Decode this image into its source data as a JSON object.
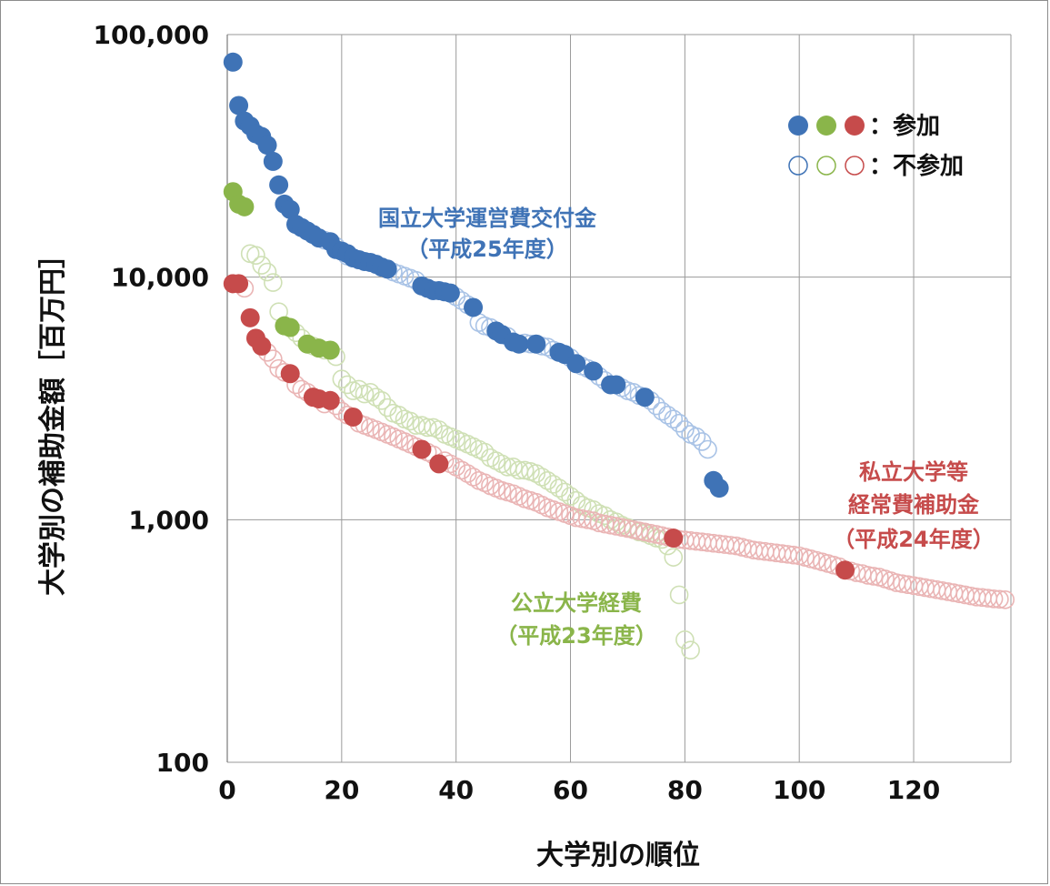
{
  "chart_data": {
    "type": "scatter",
    "title": "",
    "xlabel": "大学別の順位",
    "ylabel": "大学別の補助金額［百万円］",
    "xlim": [
      0,
      137
    ],
    "ylim": [
      100,
      100000
    ],
    "y_scale": "log",
    "grid": true,
    "x_ticks": [
      0,
      20,
      40,
      60,
      80,
      100,
      120
    ],
    "x_tick_labels": [
      "0",
      "20",
      "40",
      "60",
      "80",
      "100",
      "120"
    ],
    "y_ticks": [
      100,
      1000,
      10000,
      100000
    ],
    "y_tick_labels": [
      "100",
      "1,000",
      "10,000",
      "100,000"
    ],
    "colors": {
      "national": "#3f73b6",
      "public": "#8ab54a",
      "private": "#c64b4b",
      "national_light": "#a9c3e6",
      "public_light": "#cfe0b5",
      "private_light": "#eab5b5"
    },
    "legend": {
      "position": "top-right",
      "participating_label": "：参加",
      "non_participating_label": "：不参加"
    },
    "annotations": {
      "national_line1": "国立大学運営費交付金",
      "national_line2": "（平成25年度）",
      "public_line1": "公立大学経費",
      "public_line2": "（平成23年度）",
      "private_line1": "私立大学等",
      "private_line2": "経常費補助金",
      "private_line3": "（平成24年度）"
    },
    "series": [
      {
        "key": "national",
        "participating": [
          [
            1,
            77000
          ],
          [
            2,
            51000
          ],
          [
            3,
            44000
          ],
          [
            4,
            42000
          ],
          [
            5,
            39000
          ],
          [
            6,
            38000
          ],
          [
            7,
            35000
          ],
          [
            8,
            30000
          ],
          [
            9,
            24000
          ],
          [
            10,
            20000
          ],
          [
            11,
            19000
          ],
          [
            12,
            16500
          ],
          [
            13,
            16000
          ],
          [
            14,
            15500
          ],
          [
            15,
            15000
          ],
          [
            16,
            14500
          ],
          [
            18,
            14000
          ],
          [
            19,
            13000
          ],
          [
            20,
            12800
          ],
          [
            21,
            12500
          ],
          [
            22,
            12000
          ],
          [
            23,
            11800
          ],
          [
            24,
            11600
          ],
          [
            25,
            11500
          ],
          [
            26,
            11300
          ],
          [
            27,
            11000
          ],
          [
            28,
            10800
          ],
          [
            34,
            9200
          ],
          [
            35,
            9000
          ],
          [
            36,
            8800
          ],
          [
            37,
            8800
          ],
          [
            38,
            8700
          ],
          [
            39,
            8600
          ],
          [
            43,
            7500
          ],
          [
            47,
            6000
          ],
          [
            48,
            5800
          ],
          [
            50,
            5400
          ],
          [
            51,
            5300
          ],
          [
            54,
            5300
          ],
          [
            58,
            4900
          ],
          [
            59,
            4800
          ],
          [
            61,
            4400
          ],
          [
            64,
            4100
          ],
          [
            67,
            3600
          ],
          [
            68,
            3600
          ],
          [
            73,
            3200
          ],
          [
            85,
            1450
          ],
          [
            86,
            1350
          ]
        ],
        "non_participating": [
          [
            17,
            14200
          ],
          [
            19,
            13400
          ],
          [
            21,
            12200
          ],
          [
            29,
            10500
          ],
          [
            30,
            10300
          ],
          [
            31,
            10100
          ],
          [
            32,
            9900
          ],
          [
            33,
            9700
          ],
          [
            40,
            8300
          ],
          [
            41,
            8000
          ],
          [
            42,
            7700
          ],
          [
            44,
            6500
          ],
          [
            45,
            6300
          ],
          [
            46,
            6200
          ],
          [
            49,
            5700
          ],
          [
            52,
            5350
          ],
          [
            53,
            5300
          ],
          [
            55,
            5200
          ],
          [
            56,
            5150
          ],
          [
            57,
            5000
          ],
          [
            60,
            4650
          ],
          [
            62,
            4300
          ],
          [
            63,
            4200
          ],
          [
            65,
            3900
          ],
          [
            66,
            3750
          ],
          [
            69,
            3500
          ],
          [
            70,
            3400
          ],
          [
            71,
            3350
          ],
          [
            72,
            3250
          ],
          [
            74,
            3100
          ],
          [
            75,
            2950
          ],
          [
            76,
            2800
          ],
          [
            77,
            2700
          ],
          [
            78,
            2600
          ],
          [
            79,
            2500
          ],
          [
            80,
            2350
          ],
          [
            81,
            2250
          ],
          [
            82,
            2200
          ],
          [
            83,
            2100
          ],
          [
            84,
            1950
          ]
        ]
      },
      {
        "key": "public",
        "participating": [
          [
            1,
            22500
          ],
          [
            2,
            20000
          ],
          [
            3,
            19500
          ],
          [
            10,
            6300
          ],
          [
            11,
            6200
          ],
          [
            14,
            5300
          ],
          [
            16,
            5100
          ],
          [
            18,
            5000
          ]
        ],
        "non_participating": [
          [
            4,
            12500
          ],
          [
            5,
            12300
          ],
          [
            6,
            11200
          ],
          [
            7,
            10500
          ],
          [
            8,
            9500
          ],
          [
            9,
            7200
          ],
          [
            12,
            5900
          ],
          [
            13,
            5600
          ],
          [
            15,
            5200
          ],
          [
            17,
            5000
          ],
          [
            19,
            4700
          ],
          [
            20,
            3800
          ],
          [
            21,
            3600
          ],
          [
            22,
            3400
          ],
          [
            23,
            3450
          ],
          [
            24,
            3300
          ],
          [
            25,
            3350
          ],
          [
            26,
            3200
          ],
          [
            27,
            3100
          ],
          [
            28,
            2900
          ],
          [
            29,
            2750
          ],
          [
            30,
            2700
          ],
          [
            31,
            2600
          ],
          [
            32,
            2550
          ],
          [
            33,
            2450
          ],
          [
            34,
            2450
          ],
          [
            35,
            2400
          ],
          [
            36,
            2400
          ],
          [
            37,
            2350
          ],
          [
            38,
            2250
          ],
          [
            39,
            2200
          ],
          [
            40,
            2150
          ],
          [
            41,
            2100
          ],
          [
            42,
            2050
          ],
          [
            43,
            2000
          ],
          [
            44,
            1950
          ],
          [
            45,
            1900
          ],
          [
            46,
            1800
          ],
          [
            47,
            1750
          ],
          [
            48,
            1700
          ],
          [
            49,
            1650
          ],
          [
            50,
            1650
          ],
          [
            51,
            1600
          ],
          [
            52,
            1600
          ],
          [
            53,
            1580
          ],
          [
            54,
            1550
          ],
          [
            55,
            1500
          ],
          [
            56,
            1450
          ],
          [
            57,
            1400
          ],
          [
            58,
            1350
          ],
          [
            59,
            1300
          ],
          [
            60,
            1250
          ],
          [
            61,
            1200
          ],
          [
            62,
            1150
          ],
          [
            63,
            1120
          ],
          [
            64,
            1100
          ],
          [
            65,
            1060
          ],
          [
            66,
            1040
          ],
          [
            67,
            1000
          ],
          [
            68,
            980
          ],
          [
            69,
            950
          ],
          [
            70,
            930
          ],
          [
            71,
            910
          ],
          [
            72,
            890
          ],
          [
            73,
            880
          ],
          [
            74,
            860
          ],
          [
            75,
            840
          ],
          [
            76,
            830
          ],
          [
            77,
            780
          ],
          [
            78,
            700
          ],
          [
            79,
            490
          ],
          [
            80,
            320
          ],
          [
            81,
            290
          ]
        ]
      },
      {
        "key": "private",
        "participating": [
          [
            1,
            9400
          ],
          [
            2,
            9400
          ],
          [
            4,
            6800
          ],
          [
            5,
            5600
          ],
          [
            6,
            5200
          ],
          [
            11,
            4000
          ],
          [
            15,
            3200
          ],
          [
            16,
            3150
          ],
          [
            18,
            3100
          ],
          [
            22,
            2650
          ],
          [
            34,
            1950
          ],
          [
            37,
            1700
          ],
          [
            78,
            840
          ],
          [
            108,
            620
          ]
        ],
        "non_participating": [
          [
            3,
            9000
          ],
          [
            7,
            4900
          ],
          [
            8,
            4600
          ],
          [
            9,
            4200
          ],
          [
            10,
            4050
          ],
          [
            12,
            3600
          ],
          [
            13,
            3450
          ],
          [
            14,
            3350
          ],
          [
            17,
            3000
          ],
          [
            19,
            2950
          ],
          [
            20,
            2800
          ],
          [
            21,
            2700
          ],
          [
            23,
            2500
          ],
          [
            24,
            2450
          ],
          [
            25,
            2400
          ],
          [
            26,
            2350
          ],
          [
            27,
            2300
          ],
          [
            28,
            2250
          ],
          [
            29,
            2200
          ],
          [
            30,
            2150
          ],
          [
            31,
            2100
          ],
          [
            32,
            2050
          ],
          [
            33,
            2000
          ],
          [
            35,
            1900
          ],
          [
            36,
            1850
          ],
          [
            38,
            1750
          ],
          [
            39,
            1700
          ],
          [
            40,
            1650
          ],
          [
            41,
            1600
          ],
          [
            42,
            1550
          ],
          [
            43,
            1500
          ],
          [
            44,
            1450
          ],
          [
            45,
            1420
          ],
          [
            46,
            1380
          ],
          [
            47,
            1350
          ],
          [
            48,
            1320
          ],
          [
            49,
            1300
          ],
          [
            50,
            1280
          ],
          [
            51,
            1250
          ],
          [
            52,
            1220
          ],
          [
            53,
            1200
          ],
          [
            54,
            1180
          ],
          [
            55,
            1150
          ],
          [
            56,
            1120
          ],
          [
            57,
            1100
          ],
          [
            58,
            1080
          ],
          [
            59,
            1060
          ],
          [
            60,
            1040
          ],
          [
            61,
            1020
          ],
          [
            62,
            1010
          ],
          [
            63,
            1000
          ],
          [
            64,
            990
          ],
          [
            65,
            970
          ],
          [
            66,
            960
          ],
          [
            67,
            950
          ],
          [
            68,
            940
          ],
          [
            69,
            930
          ],
          [
            70,
            920
          ],
          [
            71,
            910
          ],
          [
            72,
            900
          ],
          [
            73,
            890
          ],
          [
            74,
            880
          ],
          [
            75,
            870
          ],
          [
            76,
            860
          ],
          [
            77,
            850
          ],
          [
            79,
            830
          ],
          [
            80,
            825
          ],
          [
            81,
            820
          ],
          [
            82,
            815
          ],
          [
            83,
            810
          ],
          [
            84,
            805
          ],
          [
            85,
            800
          ],
          [
            86,
            795
          ],
          [
            87,
            790
          ],
          [
            88,
            785
          ],
          [
            89,
            780
          ],
          [
            90,
            770
          ],
          [
            91,
            760
          ],
          [
            92,
            750
          ],
          [
            93,
            745
          ],
          [
            94,
            740
          ],
          [
            95,
            735
          ],
          [
            96,
            730
          ],
          [
            97,
            725
          ],
          [
            98,
            720
          ],
          [
            99,
            715
          ],
          [
            100,
            710
          ],
          [
            101,
            700
          ],
          [
            102,
            690
          ],
          [
            103,
            680
          ],
          [
            104,
            670
          ],
          [
            105,
            660
          ],
          [
            106,
            650
          ],
          [
            107,
            640
          ],
          [
            109,
            615
          ],
          [
            110,
            605
          ],
          [
            111,
            600
          ],
          [
            112,
            590
          ],
          [
            113,
            585
          ],
          [
            114,
            580
          ],
          [
            115,
            570
          ],
          [
            116,
            560
          ],
          [
            117,
            550
          ],
          [
            118,
            545
          ],
          [
            119,
            540
          ],
          [
            120,
            535
          ],
          [
            121,
            530
          ],
          [
            122,
            525
          ],
          [
            123,
            520
          ],
          [
            124,
            515
          ],
          [
            125,
            510
          ],
          [
            126,
            505
          ],
          [
            127,
            500
          ],
          [
            128,
            495
          ],
          [
            129,
            490
          ],
          [
            130,
            485
          ],
          [
            131,
            480
          ],
          [
            132,
            478
          ],
          [
            133,
            475
          ],
          [
            134,
            472
          ],
          [
            135,
            470
          ],
          [
            136,
            468
          ]
        ]
      }
    ]
  }
}
